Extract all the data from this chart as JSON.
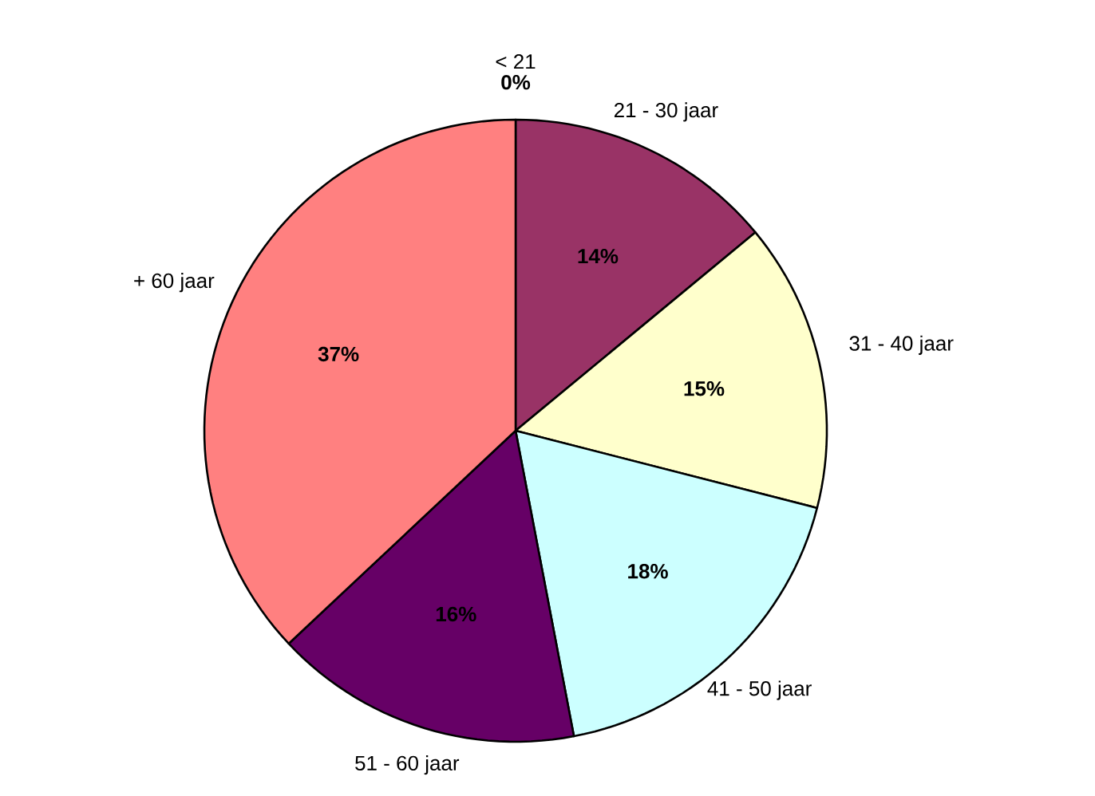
{
  "chart_data": {
    "type": "pie",
    "categories": [
      "< 21",
      "21 - 30 jaar",
      "31 - 40 jaar",
      "41 - 50 jaar",
      "51 - 60 jaar",
      "+ 60 jaar"
    ],
    "values": [
      0,
      14,
      15,
      18,
      16,
      37
    ],
    "value_labels": [
      "0%",
      "14%",
      "15%",
      "18%",
      "16%",
      "37%"
    ],
    "colors": [
      "#9999ff",
      "#993366",
      "#ffffcc",
      "#ccffff",
      "#660066",
      "#ff8080"
    ]
  }
}
